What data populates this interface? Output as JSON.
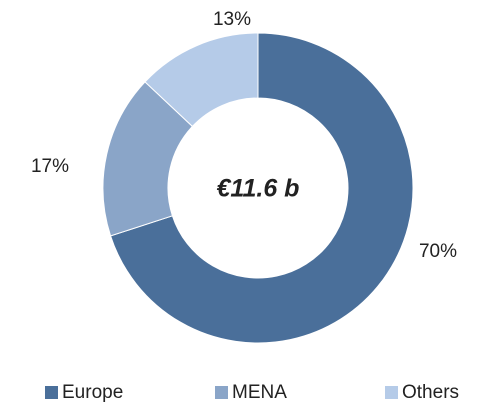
{
  "chart_data": {
    "type": "donut",
    "center_label": "€11.6 b",
    "categories": [
      "Europe",
      "MENA",
      "Others"
    ],
    "values": [
      70,
      17,
      13
    ],
    "value_labels": [
      "70%",
      "17%",
      "13%"
    ],
    "colors": [
      "#4a6f9a",
      "#8aa5c8",
      "#b5cbe8"
    ],
    "legend": "bottom"
  }
}
